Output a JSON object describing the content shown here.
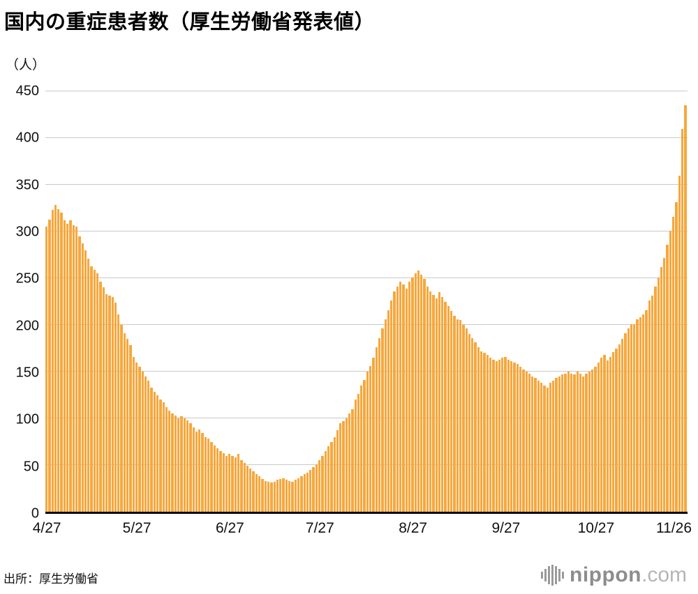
{
  "title": "国内の重症患者数（厚生労働省発表値）",
  "unit_label": "（人）",
  "source": "出所：厚生労働省",
  "logo": {
    "name": "nippon",
    "suffix": ".com"
  },
  "chart_data": {
    "type": "bar",
    "title": "国内の重症患者数（厚生労働省発表値）",
    "ylabel": "人",
    "ylim": [
      0,
      450
    ],
    "y_ticks": [
      0,
      50,
      100,
      150,
      200,
      250,
      300,
      350,
      400,
      450
    ],
    "grid": true,
    "legend": "none",
    "bar_color": "#F7A73D",
    "n_points": 214,
    "date_range": "4/27 - 11/26, daily",
    "x_ticks": [
      {
        "label": "4/27",
        "index": 0,
        "align": "center"
      },
      {
        "label": "5/27",
        "index": 30,
        "align": "center"
      },
      {
        "label": "6/27",
        "index": 61,
        "align": "center"
      },
      {
        "label": "7/27",
        "index": 91,
        "align": "center"
      },
      {
        "label": "8/27",
        "index": 122,
        "align": "center"
      },
      {
        "label": "9/27",
        "index": 153,
        "align": "center"
      },
      {
        "label": "10/27",
        "index": 183,
        "align": "center"
      },
      {
        "label": "11/26",
        "index": 213,
        "align": "right"
      }
    ],
    "values": [
      305,
      313,
      323,
      328,
      324,
      320,
      312,
      308,
      312,
      307,
      305,
      295,
      287,
      280,
      271,
      263,
      259,
      255,
      246,
      240,
      233,
      231,
      230,
      224,
      211,
      200,
      191,
      185,
      178,
      166,
      160,
      155,
      150,
      145,
      140,
      133,
      128,
      125,
      120,
      117,
      112,
      108,
      105,
      103,
      100,
      102,
      100,
      98,
      95,
      90,
      86,
      88,
      84,
      80,
      78,
      75,
      71,
      68,
      65,
      63,
      60,
      62,
      60,
      58,
      62,
      55,
      52,
      49,
      46,
      43,
      40,
      38,
      35,
      33,
      32,
      31,
      32,
      34,
      35,
      36,
      34,
      33,
      32,
      34,
      36,
      38,
      40,
      42,
      45,
      48,
      51,
      55,
      60,
      65,
      70,
      75,
      80,
      87,
      95,
      97,
      100,
      105,
      110,
      120,
      126,
      135,
      141,
      150,
      156,
      165,
      176,
      186,
      196,
      206,
      216,
      226,
      236,
      241,
      246,
      243,
      239,
      246,
      251,
      255,
      258,
      254,
      249,
      241,
      236,
      232,
      228,
      235,
      230,
      225,
      220,
      215,
      210,
      206,
      205,
      200,
      196,
      190,
      186,
      181,
      176,
      172,
      170,
      168,
      165,
      163,
      161,
      163,
      165,
      166,
      163,
      161,
      160,
      158,
      155,
      152,
      150,
      148,
      145,
      143,
      140,
      138,
      135,
      133,
      138,
      140,
      143,
      145,
      147,
      148,
      150,
      148,
      147,
      150,
      148,
      145,
      148,
      150,
      152,
      155,
      160,
      165,
      168,
      162,
      166,
      171,
      175,
      179,
      185,
      191,
      196,
      201,
      201,
      206,
      208,
      211,
      216,
      226,
      231,
      241,
      251,
      262,
      272,
      286,
      301,
      316,
      331,
      360,
      410,
      435
    ]
  }
}
